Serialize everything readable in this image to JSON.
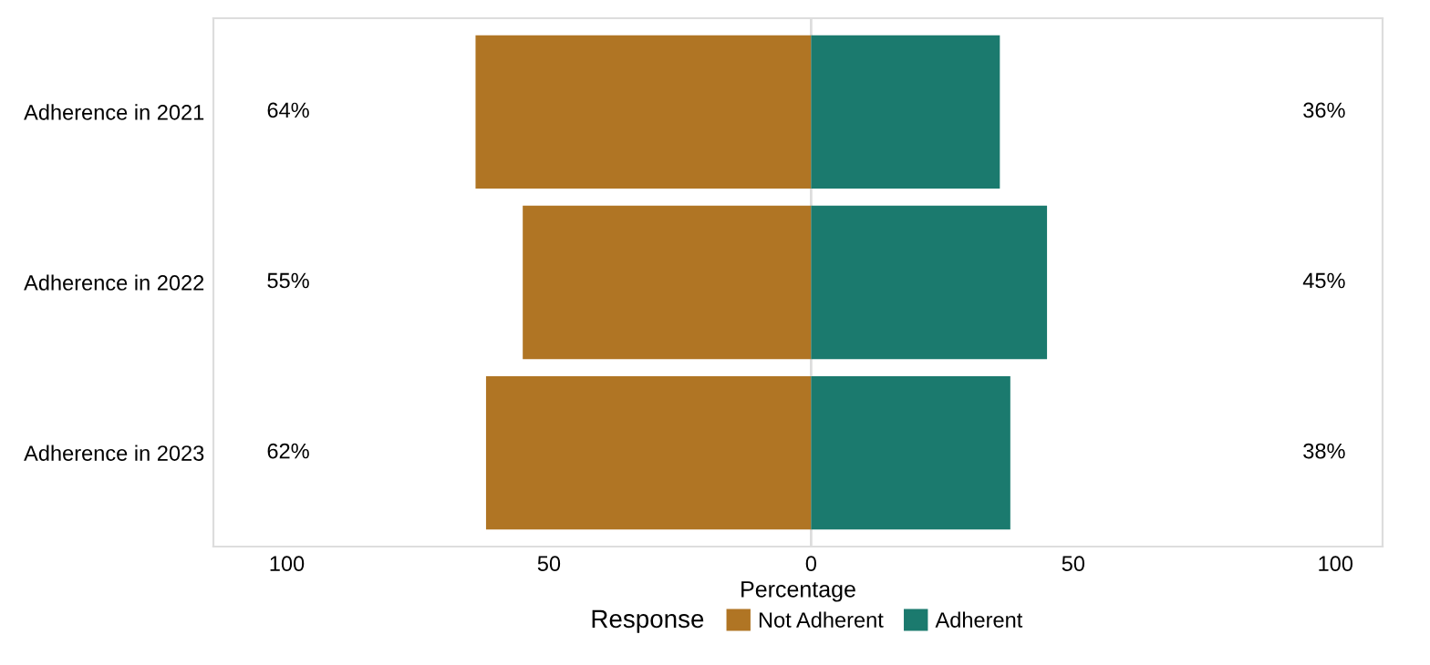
{
  "chart_data": {
    "type": "bar",
    "orientation": "horizontal",
    "xlabel": "Percentage",
    "legend_title": "Response",
    "legend": "bottom",
    "grid": false,
    "categories": [
      "Adherence in 2021",
      "Adherence in 2022",
      "Adherence in 2023"
    ],
    "series": [
      {
        "name": "Not Adherent",
        "color": "#b07524",
        "values": [
          64,
          55,
          62
        ],
        "base": [
          -64,
          -55,
          -62
        ]
      },
      {
        "name": "Adherent",
        "color": "#1b7a6e",
        "values": [
          36,
          45,
          38
        ]
      }
    ],
    "annotations": [
      "64%",
      "55%",
      "62%",
      "36%",
      "45%",
      "38%"
    ],
    "xlim": [
      -114,
      109
    ],
    "xticks": [
      {
        "value": -100,
        "label": "100"
      },
      {
        "value": -50,
        "label": "50"
      },
      0,
      50,
      100
    ],
    "ref_lines": [
      {
        "axis": "x",
        "value": 0,
        "color": "#dddddd"
      }
    ]
  }
}
